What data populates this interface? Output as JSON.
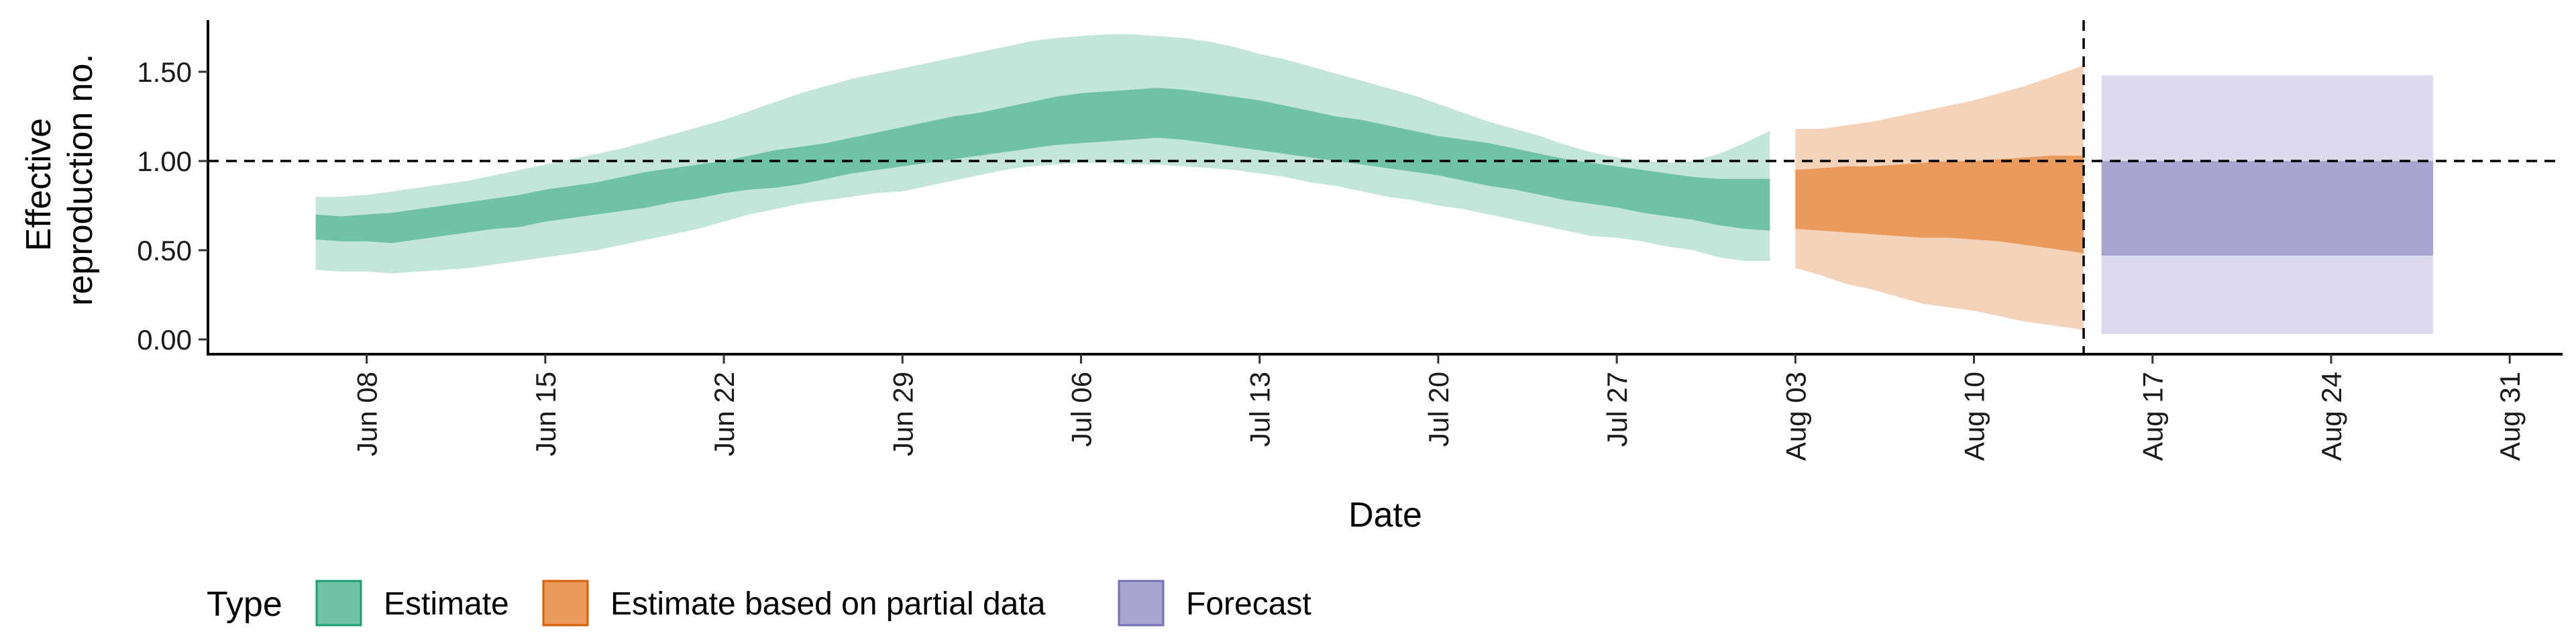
{
  "chart_data": {
    "type": "area",
    "xlabel": "Date",
    "ylabel_lines": [
      "Effective",
      "reproduction no."
    ],
    "ylim": [
      -0.05,
      1.8
    ],
    "y_ticks": [
      {
        "value": 0.0,
        "label": "0.00"
      },
      {
        "value": 0.5,
        "label": "0.50"
      },
      {
        "value": 1.0,
        "label": "1.00"
      },
      {
        "value": 1.5,
        "label": "1.50"
      }
    ],
    "x_ticks": [
      {
        "day": 8,
        "label": "Jun 08"
      },
      {
        "day": 15,
        "label": "Jun 15"
      },
      {
        "day": 22,
        "label": "Jun 22"
      },
      {
        "day": 29,
        "label": "Jun 29"
      },
      {
        "day": 36,
        "label": "Jul 06"
      },
      {
        "day": 43,
        "label": "Jul 13"
      },
      {
        "day": 50,
        "label": "Jul 20"
      },
      {
        "day": 57,
        "label": "Jul 27"
      },
      {
        "day": 64,
        "label": "Aug 03"
      },
      {
        "day": 71,
        "label": "Aug 10"
      },
      {
        "day": 78,
        "label": "Aug 17"
      },
      {
        "day": 85,
        "label": "Aug 24"
      },
      {
        "day": 92,
        "label": "Aug 31"
      }
    ],
    "x_day_origin": "May 31",
    "xlim_days": [
      0,
      94
    ],
    "reference_lines": {
      "horizontal_y": 1.0,
      "vertical_day": 75.3
    },
    "legend": {
      "title": "Type",
      "position": "bottom-left",
      "items": [
        {
          "label": "Estimate",
          "fill": "#6fc2a4",
          "stroke": "#1b9e77"
        },
        {
          "label": "Estimate based on partial data",
          "fill": "#e99a5c",
          "stroke": "#d95f02"
        },
        {
          "label": "Forecast",
          "fill": "#a8a5d1",
          "stroke": "#7570b3"
        }
      ]
    },
    "series": [
      {
        "name": "Estimate",
        "outer_color": "#c4e6da",
        "inner_color": "#6fc2a4",
        "days": [
          6,
          7,
          8,
          9,
          10,
          11,
          12,
          13,
          14,
          15,
          16,
          17,
          18,
          19,
          20,
          21,
          22,
          23,
          24,
          25,
          26,
          27,
          28,
          29,
          30,
          31,
          32,
          33,
          34,
          35,
          36,
          37,
          38,
          39,
          40,
          41,
          42,
          43,
          44,
          45,
          46,
          47,
          48,
          49,
          50,
          51,
          52,
          53,
          54,
          55,
          56,
          57,
          58,
          59,
          60,
          61,
          62,
          63
        ],
        "lower_90": [
          0.39,
          0.38,
          0.38,
          0.37,
          0.38,
          0.39,
          0.4,
          0.42,
          0.44,
          0.46,
          0.48,
          0.5,
          0.53,
          0.56,
          0.59,
          0.62,
          0.66,
          0.7,
          0.73,
          0.76,
          0.78,
          0.8,
          0.82,
          0.83,
          0.86,
          0.89,
          0.92,
          0.95,
          0.97,
          0.98,
          0.99,
          0.99,
          0.98,
          0.98,
          0.97,
          0.96,
          0.95,
          0.93,
          0.91,
          0.88,
          0.86,
          0.83,
          0.8,
          0.78,
          0.75,
          0.73,
          0.7,
          0.67,
          0.64,
          0.61,
          0.58,
          0.57,
          0.55,
          0.52,
          0.5,
          0.46,
          0.44,
          0.44
        ],
        "lower_50": [
          0.56,
          0.55,
          0.55,
          0.54,
          0.56,
          0.58,
          0.6,
          0.62,
          0.63,
          0.66,
          0.68,
          0.7,
          0.72,
          0.74,
          0.77,
          0.79,
          0.82,
          0.84,
          0.85,
          0.87,
          0.9,
          0.93,
          0.95,
          0.97,
          0.99,
          1.01,
          1.03,
          1.05,
          1.07,
          1.09,
          1.1,
          1.11,
          1.12,
          1.13,
          1.12,
          1.1,
          1.08,
          1.06,
          1.04,
          1.02,
          1.0,
          0.98,
          0.96,
          0.94,
          0.92,
          0.89,
          0.86,
          0.84,
          0.81,
          0.78,
          0.76,
          0.74,
          0.71,
          0.69,
          0.67,
          0.64,
          0.62,
          0.61
        ],
        "upper_50": [
          0.7,
          0.69,
          0.7,
          0.71,
          0.73,
          0.75,
          0.77,
          0.79,
          0.81,
          0.84,
          0.86,
          0.88,
          0.91,
          0.94,
          0.96,
          0.98,
          1.0,
          1.03,
          1.06,
          1.08,
          1.1,
          1.13,
          1.16,
          1.19,
          1.22,
          1.25,
          1.27,
          1.3,
          1.33,
          1.36,
          1.38,
          1.39,
          1.4,
          1.41,
          1.4,
          1.38,
          1.36,
          1.34,
          1.31,
          1.28,
          1.25,
          1.23,
          1.2,
          1.17,
          1.14,
          1.12,
          1.1,
          1.07,
          1.04,
          1.01,
          0.99,
          0.97,
          0.95,
          0.93,
          0.91,
          0.9,
          0.9,
          0.9
        ],
        "upper_90": [
          0.8,
          0.8,
          0.81,
          0.83,
          0.85,
          0.87,
          0.89,
          0.92,
          0.95,
          0.98,
          1.01,
          1.04,
          1.07,
          1.11,
          1.15,
          1.19,
          1.23,
          1.28,
          1.33,
          1.38,
          1.42,
          1.46,
          1.49,
          1.52,
          1.55,
          1.58,
          1.61,
          1.64,
          1.67,
          1.69,
          1.7,
          1.71,
          1.71,
          1.7,
          1.69,
          1.67,
          1.64,
          1.6,
          1.57,
          1.53,
          1.49,
          1.45,
          1.41,
          1.37,
          1.32,
          1.27,
          1.22,
          1.18,
          1.14,
          1.09,
          1.05,
          1.02,
          1.0,
          0.99,
          1.0,
          1.04,
          1.1,
          1.17
        ]
      },
      {
        "name": "Estimate based on partial data",
        "outer_color": "#f4d3bb",
        "inner_color": "#e99a5c",
        "days": [
          64,
          65,
          66,
          67,
          68,
          69,
          70,
          71,
          72,
          73,
          74,
          75,
          75.3
        ],
        "lower_90": [
          0.4,
          0.36,
          0.31,
          0.28,
          0.24,
          0.2,
          0.18,
          0.16,
          0.13,
          0.1,
          0.08,
          0.06,
          0.05
        ],
        "lower_50": [
          0.62,
          0.61,
          0.6,
          0.59,
          0.58,
          0.57,
          0.57,
          0.56,
          0.55,
          0.53,
          0.51,
          0.49,
          0.48
        ],
        "upper_50": [
          0.95,
          0.96,
          0.97,
          0.97,
          0.98,
          0.99,
          1.0,
          1.0,
          1.01,
          1.02,
          1.03,
          1.03,
          1.03
        ],
        "upper_90": [
          1.18,
          1.18,
          1.2,
          1.22,
          1.25,
          1.28,
          1.31,
          1.34,
          1.38,
          1.42,
          1.47,
          1.52,
          1.54
        ]
      },
      {
        "name": "Forecast",
        "outer_color": "#dcdbee",
        "inner_color": "#a8a5d1",
        "days": [
          76,
          89
        ],
        "lower_90": [
          0.03,
          0.03
        ],
        "lower_50": [
          0.47,
          0.47
        ],
        "upper_50": [
          1.0,
          1.0
        ],
        "upper_90": [
          1.48,
          1.48
        ]
      }
    ]
  }
}
